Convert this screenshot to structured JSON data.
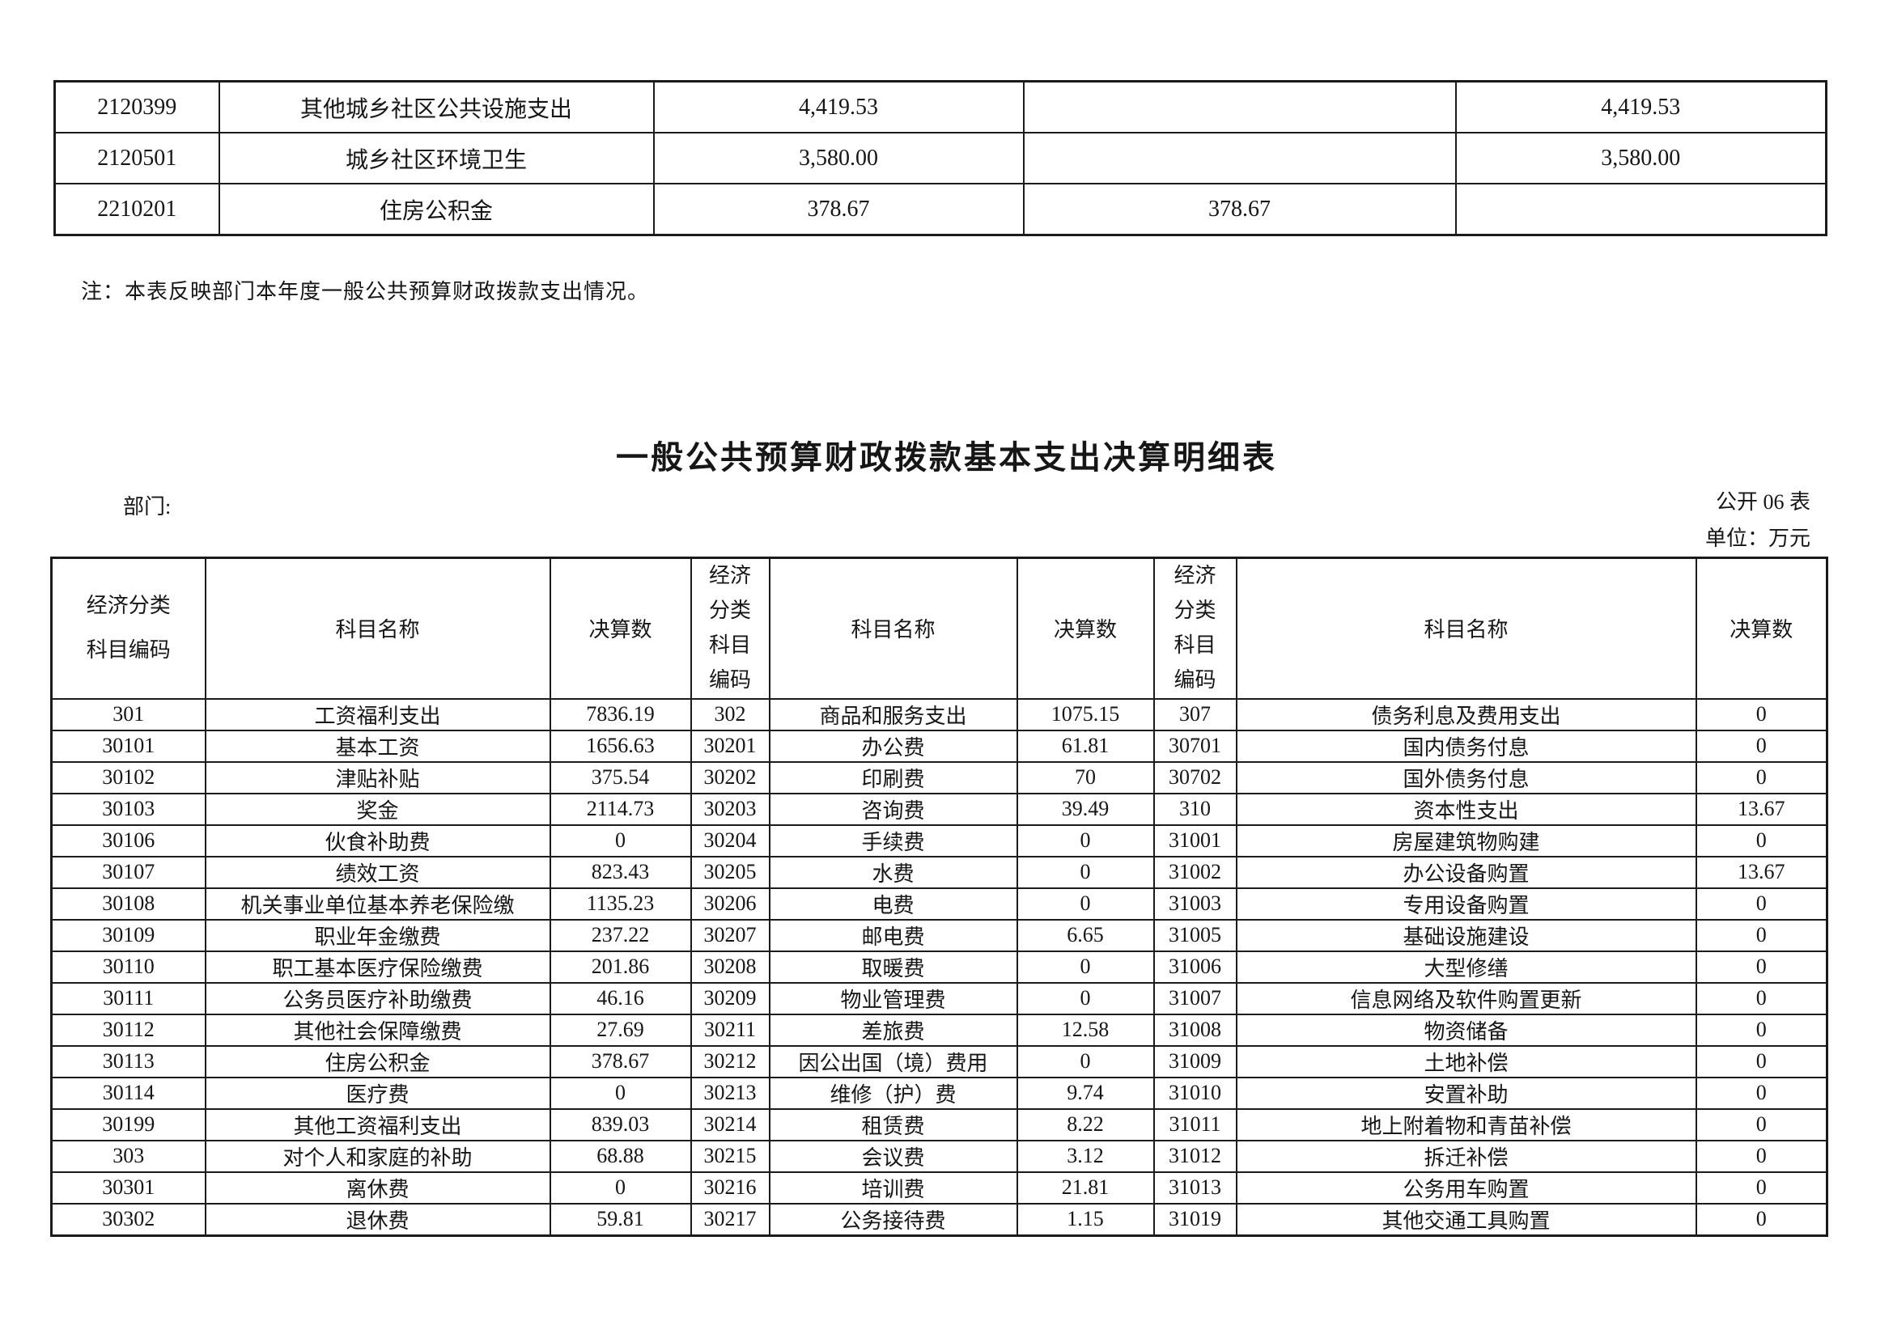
{
  "page": {
    "background": "#ffffff",
    "text_color": "#161616",
    "border_color": "#1b1b1b"
  },
  "top_table": {
    "rows": [
      [
        "2120399",
        "其他城乡社区公共设施支出",
        "4,419.53",
        "",
        "4,419.53"
      ],
      [
        "2120501",
        "城乡社区环境卫生",
        "3,580.00",
        "",
        "3,580.00"
      ],
      [
        "2210201",
        "住房公积金",
        "378.67",
        "378.67",
        ""
      ]
    ]
  },
  "note": "注：本表反映部门本年度一般公共预算财政拨款支出情况。",
  "title": "一般公共预算财政拨款基本支出决算明细表",
  "meta": {
    "department_label": "部门:",
    "sheet_label": "公开 06 表",
    "unit_label": "单位：万元"
  },
  "main_table": {
    "headers": {
      "code_two_line": "经济分类\n科目编码",
      "code_four_line": "经济\n分类\n科目\n编码",
      "name": "科目名称",
      "value": "决算数"
    },
    "rows": [
      [
        "301",
        "工资福利支出",
        "7836.19",
        "302",
        "商品和服务支出",
        "1075.15",
        "307",
        "债务利息及费用支出",
        "0"
      ],
      [
        "30101",
        "基本工资",
        "1656.63",
        "30201",
        "办公费",
        "61.81",
        "30701",
        "国内债务付息",
        "0"
      ],
      [
        "30102",
        "津贴补贴",
        "375.54",
        "30202",
        "印刷费",
        "70",
        "30702",
        "国外债务付息",
        "0"
      ],
      [
        "30103",
        "奖金",
        "2114.73",
        "30203",
        "咨询费",
        "39.49",
        "310",
        "资本性支出",
        "13.67"
      ],
      [
        "30106",
        "伙食补助费",
        "0",
        "30204",
        "手续费",
        "0",
        "31001",
        "房屋建筑物购建",
        "0"
      ],
      [
        "30107",
        "绩效工资",
        "823.43",
        "30205",
        "水费",
        "0",
        "31002",
        "办公设备购置",
        "13.67"
      ],
      [
        "30108",
        "机关事业单位基本养老保险缴",
        "1135.23",
        "30206",
        "电费",
        "0",
        "31003",
        "专用设备购置",
        "0"
      ],
      [
        "30109",
        "职业年金缴费",
        "237.22",
        "30207",
        "邮电费",
        "6.65",
        "31005",
        "基础设施建设",
        "0"
      ],
      [
        "30110",
        "职工基本医疗保险缴费",
        "201.86",
        "30208",
        "取暖费",
        "0",
        "31006",
        "大型修缮",
        "0"
      ],
      [
        "30111",
        "公务员医疗补助缴费",
        "46.16",
        "30209",
        "物业管理费",
        "0",
        "31007",
        "信息网络及软件购置更新",
        "0"
      ],
      [
        "30112",
        "其他社会保障缴费",
        "27.69",
        "30211",
        "差旅费",
        "12.58",
        "31008",
        "物资储备",
        "0"
      ],
      [
        "30113",
        "住房公积金",
        "378.67",
        "30212",
        "因公出国（境）费用",
        "0",
        "31009",
        "土地补偿",
        "0"
      ],
      [
        "30114",
        "医疗费",
        "0",
        "30213",
        "维修（护）费",
        "9.74",
        "31010",
        "安置补助",
        "0"
      ],
      [
        "30199",
        "其他工资福利支出",
        "839.03",
        "30214",
        "租赁费",
        "8.22",
        "31011",
        "地上附着物和青苗补偿",
        "0"
      ],
      [
        "303",
        "对个人和家庭的补助",
        "68.88",
        "30215",
        "会议费",
        "3.12",
        "31012",
        "拆迁补偿",
        "0"
      ],
      [
        "30301",
        "离休费",
        "0",
        "30216",
        "培训费",
        "21.81",
        "31013",
        "公务用车购置",
        "0"
      ],
      [
        "30302",
        "退休费",
        "59.81",
        "30217",
        "公务接待费",
        "1.15",
        "31019",
        "其他交通工具购置",
        "0"
      ]
    ]
  }
}
